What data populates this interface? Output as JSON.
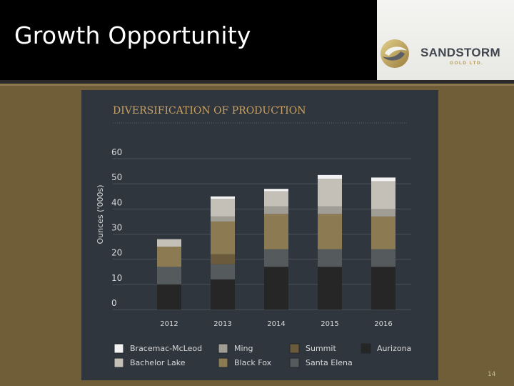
{
  "slide": {
    "title": "Growth Opportunity",
    "page_number": "14"
  },
  "logo": {
    "word": "SANDSTORM",
    "sub": "GOLD LTD."
  },
  "chart_data": {
    "type": "bar",
    "stacked": true,
    "title": "DIVERSIFICATION OF PRODUCTION",
    "ylabel": "Ounces ('000s)",
    "xlabel": "",
    "ylim": [
      0,
      60
    ],
    "yticks": [
      0,
      10,
      20,
      30,
      40,
      50,
      60
    ],
    "grid": true,
    "legend_position": "bottom",
    "categories": [
      "2012",
      "2013",
      "2014",
      "2015",
      "2016"
    ],
    "series": [
      {
        "name": "Aurizona",
        "color": "#262626",
        "values": [
          10,
          12,
          17,
          17,
          17
        ]
      },
      {
        "name": "Santa Elena",
        "color": "#555a5c",
        "values": [
          7,
          6,
          7,
          7,
          7
        ]
      },
      {
        "name": "Summit",
        "color": "#6b5a3c",
        "values": [
          0,
          4,
          0,
          0,
          0
        ]
      },
      {
        "name": "Black Fox",
        "color": "#8c7a52",
        "values": [
          8,
          13,
          14,
          14,
          13
        ]
      },
      {
        "name": "Ming",
        "color": "#a09d94",
        "values": [
          0,
          2,
          3,
          3,
          3
        ]
      },
      {
        "name": "Bachelor Lake",
        "color": "#c4c0b8",
        "values": [
          3,
          7,
          6,
          11,
          11
        ]
      },
      {
        "name": "Bracemac-McLeod",
        "color": "#f2f2f2",
        "values": [
          0,
          1,
          1,
          1.5,
          1.5
        ]
      }
    ],
    "legend_order": [
      "Bracemac-McLeod",
      "Ming",
      "Summit",
      "Aurizona",
      "Bachelor Lake",
      "Black Fox",
      "Santa Elena"
    ]
  }
}
